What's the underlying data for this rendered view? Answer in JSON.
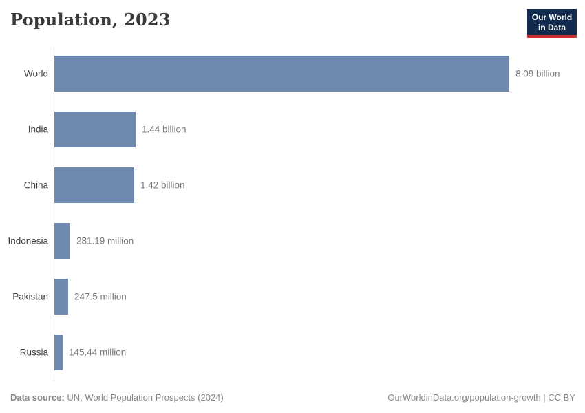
{
  "header": {
    "title": "Population, 2023"
  },
  "logo": {
    "line1": "Our World",
    "line2": "in Data"
  },
  "footer": {
    "source_label": "Data source:",
    "source_text": " UN, World Population Prospects (2024)",
    "link_text": "OurWorldinData.org/population-growth | CC BY"
  },
  "colors": {
    "bar": "#6e88af",
    "axis_line": "#dedede",
    "logo_background": "#112b4e",
    "logo_red": "#cc2f2c",
    "title_text": "#3c3c3c",
    "category_text": "#3f3f3f",
    "value_text": "#787878",
    "footer_text": "#878787"
  },
  "chart_data": {
    "type": "bar",
    "orientation": "horizontal",
    "title": "Population, 2023",
    "categories": [
      "World",
      "India",
      "China",
      "Indonesia",
      "Pakistan",
      "Russia"
    ],
    "values_billions": [
      8.09,
      1.44,
      1.42,
      0.28119,
      0.2475,
      0.14544
    ],
    "value_labels": [
      "8.09 billion",
      "1.44 billion",
      "1.42 billion",
      "281.19 million",
      "247.5 million",
      "145.44 million"
    ],
    "xlim_billions": [
      0,
      8.09
    ],
    "grid": false,
    "legend": false,
    "sorted": "descending"
  }
}
